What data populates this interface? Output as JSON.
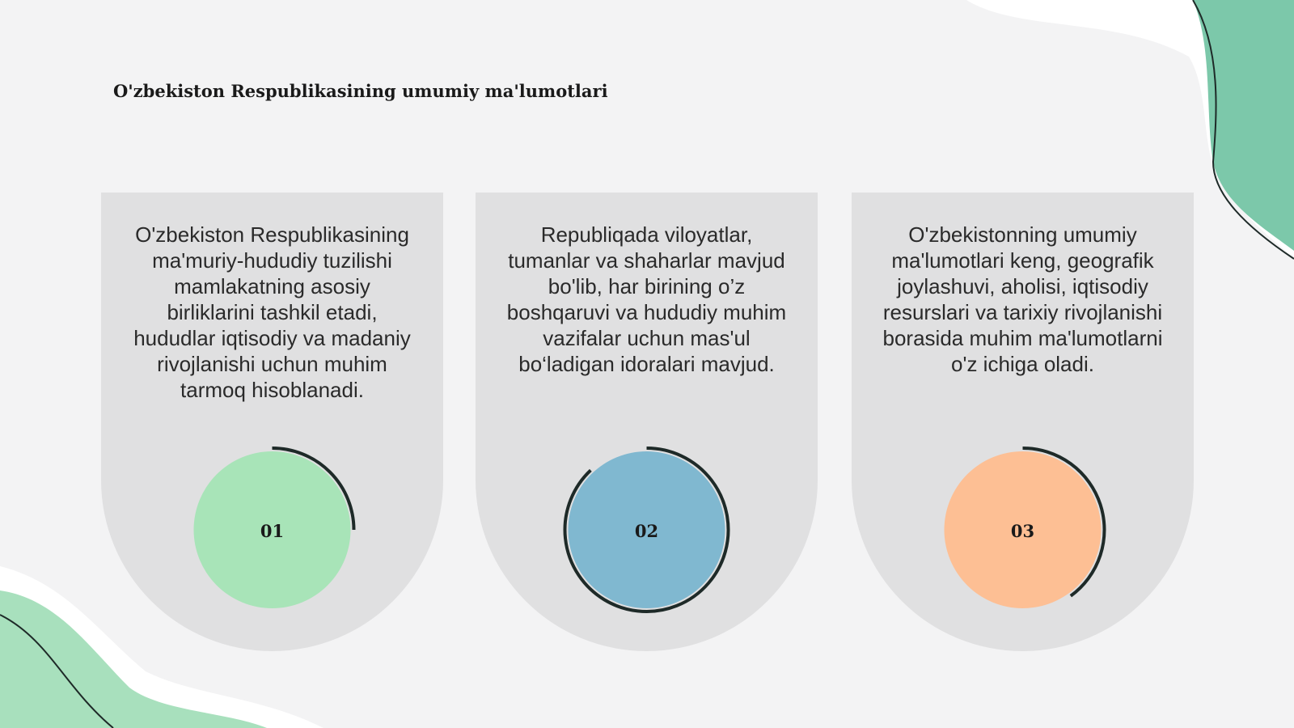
{
  "header": {
    "title": "O'zbekiston Respublikasining umumiy ma'lumotlari"
  },
  "cards": [
    {
      "text": "O'zbekiston Respublikasining ma'muriy-hududiy tuzilishi mamlakatning asosiy birliklarini tashkil etadi, hududlar iqtisodiy va madaniy rivojlanishi uchun muhim tarmoq hisoblanadi.",
      "number": "01",
      "color": "#a8e4b8",
      "progress": 25
    },
    {
      "text": "Republiqada viloyatlar, tumanlar va shaharlar mavjud bo'lib, har birining o’z boshqaruvi va hududiy muhim vazifalar uchun mas'ul bo‘ladigan idoralari mavjud.",
      "number": "02",
      "color": "#80b8d0",
      "progress": 88
    },
    {
      "text": "O'zbekistonning umumiy ma'lumotlari keng, geografik joylashuvi, aholisi, iqtisodiy resurslari va tarixiy rivojlanishi borasida muhim ma'lumotlarni o'z ichiga oladi.",
      "number": "03",
      "color": "#fdbf94",
      "progress": 40
    }
  ]
}
